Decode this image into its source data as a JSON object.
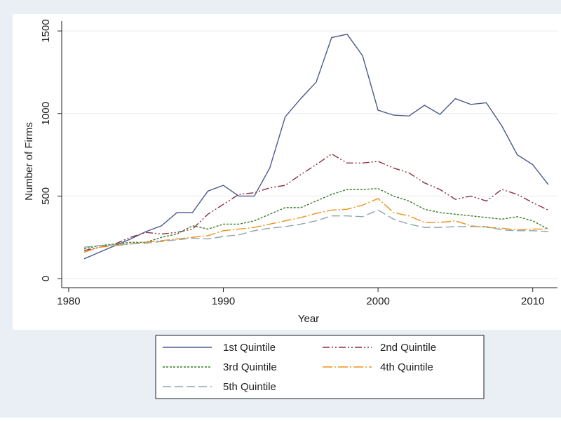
{
  "chart_data": {
    "type": "line",
    "xlabel": "Year",
    "ylabel": "Number of Firms",
    "x": [
      1981,
      1982,
      1983,
      1984,
      1985,
      1986,
      1987,
      1988,
      1989,
      1990,
      1991,
      1992,
      1993,
      1994,
      1995,
      1996,
      1997,
      1998,
      1999,
      2000,
      2001,
      2002,
      2003,
      2004,
      2005,
      2006,
      2007,
      2008,
      2009,
      2010,
      2011
    ],
    "series": [
      {
        "name": "1st Quintile",
        "color": "#4a5a8c",
        "dash": "none",
        "values": [
          120,
          160,
          200,
          240,
          285,
          320,
          400,
          400,
          530,
          565,
          500,
          500,
          670,
          980,
          1090,
          1190,
          1460,
          1480,
          1350,
          1020,
          990,
          985,
          1050,
          995,
          1090,
          1055,
          1065,
          925,
          750,
          690,
          570
        ]
      },
      {
        "name": "2nd Quintile",
        "color": "#8b2e3e",
        "dash": "10 3 2 3 2 3",
        "values": [
          170,
          190,
          210,
          250,
          280,
          270,
          280,
          300,
          390,
          450,
          510,
          520,
          550,
          565,
          630,
          690,
          755,
          700,
          700,
          710,
          670,
          640,
          580,
          540,
          480,
          500,
          470,
          540,
          510,
          460,
          415
        ]
      },
      {
        "name": "3rd Quintile",
        "color": "#3b7d2a",
        "dash": "3 2",
        "values": [
          180,
          200,
          210,
          220,
          220,
          250,
          270,
          320,
          300,
          330,
          330,
          350,
          390,
          430,
          430,
          470,
          510,
          540,
          540,
          545,
          500,
          470,
          420,
          400,
          390,
          380,
          370,
          360,
          375,
          350,
          300
        ]
      },
      {
        "name": "4th Quintile",
        "color": "#f0901a",
        "dash": "14 3 2 3",
        "values": [
          160,
          190,
          200,
          210,
          220,
          230,
          240,
          250,
          260,
          290,
          300,
          310,
          330,
          350,
          370,
          395,
          415,
          420,
          445,
          485,
          400,
          380,
          340,
          340,
          350,
          320,
          310,
          305,
          295,
          300,
          300
        ]
      },
      {
        "name": "5th Quintile",
        "color": "#8fa5ad",
        "dash": "12 5",
        "values": [
          190,
          200,
          205,
          210,
          215,
          225,
          235,
          245,
          240,
          255,
          265,
          290,
          305,
          315,
          330,
          350,
          380,
          380,
          375,
          415,
          360,
          330,
          310,
          310,
          315,
          315,
          315,
          295,
          290,
          290,
          285
        ]
      }
    ],
    "xlim": [
      1979.55,
      2011.6
    ],
    "xticks": [
      1980,
      1990,
      2000,
      2010
    ],
    "ylim": [
      -55,
      1560
    ],
    "yticks": [
      0,
      500,
      1000,
      1500
    ],
    "grid": true
  }
}
